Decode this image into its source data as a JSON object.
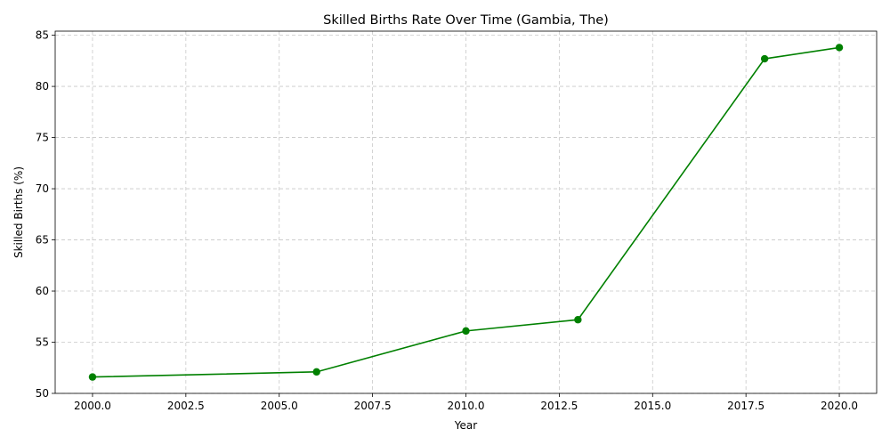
{
  "chart_data": {
    "type": "line",
    "title": "Skilled Births Rate Over Time (Gambia, The)",
    "xlabel": "Year",
    "ylabel": "Skilled Births (%)",
    "xlim": [
      1999.0,
      2021.0
    ],
    "ylim": [
      50,
      85.4
    ],
    "x_ticks": [
      2000.0,
      2002.5,
      2005.0,
      2007.5,
      2010.0,
      2012.5,
      2015.0,
      2017.5,
      2020.0
    ],
    "x_tick_labels": [
      "2000.0",
      "2002.5",
      "2005.0",
      "2007.5",
      "2010.0",
      "2012.5",
      "2015.0",
      "2017.5",
      "2020.0"
    ],
    "y_ticks": [
      50,
      55,
      60,
      65,
      70,
      75,
      80,
      85
    ],
    "y_tick_labels": [
      "50",
      "55",
      "60",
      "65",
      "70",
      "75",
      "80",
      "85"
    ],
    "grid": true,
    "series": [
      {
        "color": "#008000",
        "marker": "circle",
        "x": [
          2000,
          2006,
          2010,
          2013,
          2018,
          2020
        ],
        "y": [
          51.6,
          52.1,
          56.1,
          57.2,
          82.7,
          83.8
        ]
      }
    ]
  }
}
